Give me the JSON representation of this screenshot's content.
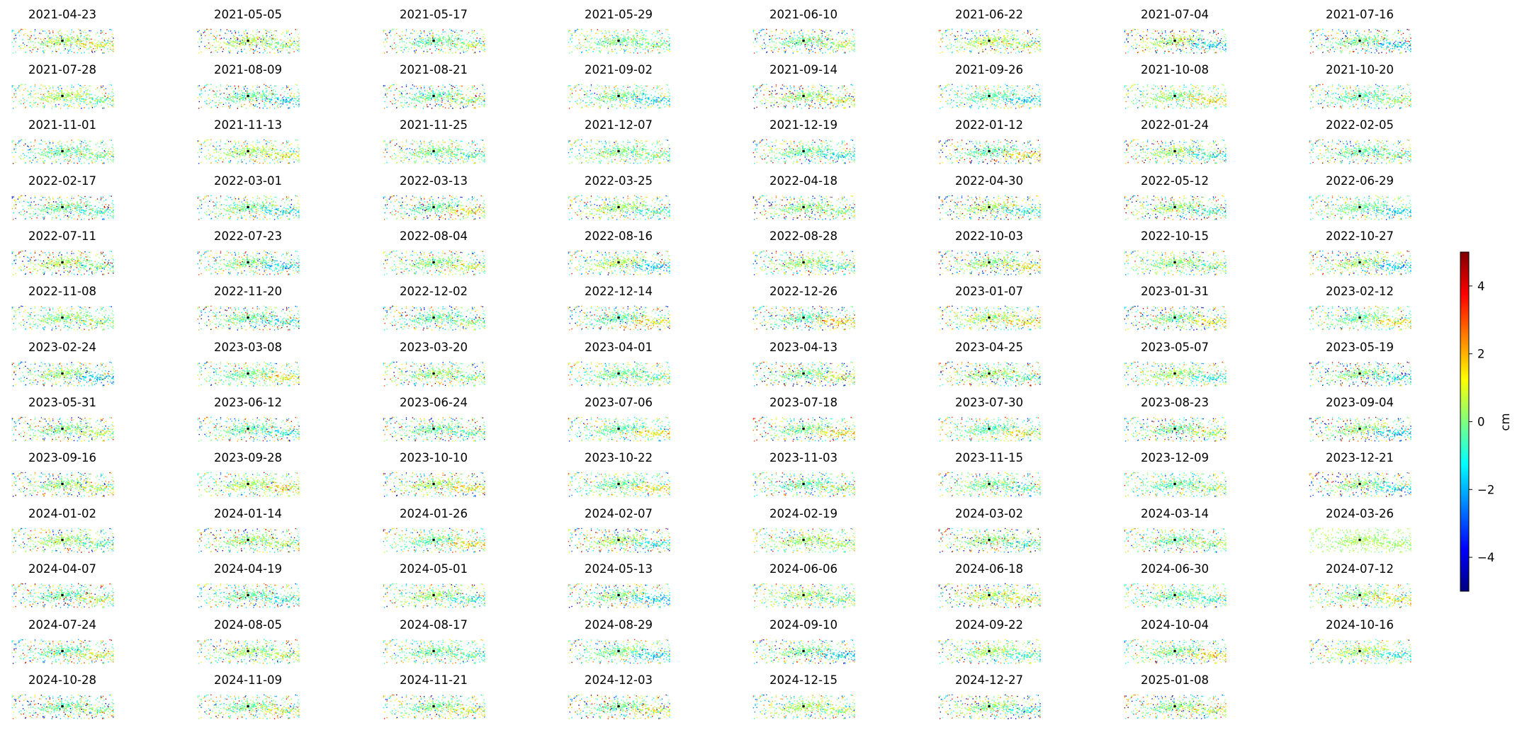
{
  "chart_data": {
    "type": "scatter",
    "description_of_layout": "small multiples",
    "panels": [
      "2021-04-23",
      "2021-05-05",
      "2021-05-17",
      "2021-05-29",
      "2021-06-10",
      "2021-06-22",
      "2021-07-04",
      "2021-07-16",
      "2021-07-28",
      "2021-08-09",
      "2021-08-21",
      "2021-09-02",
      "2021-09-14",
      "2021-09-26",
      "2021-10-08",
      "2021-10-20",
      "2021-11-01",
      "2021-11-13",
      "2021-11-25",
      "2021-12-07",
      "2021-12-19",
      "2022-01-12",
      "2022-01-24",
      "2022-02-05",
      "2022-02-17",
      "2022-03-01",
      "2022-03-13",
      "2022-03-25",
      "2022-04-18",
      "2022-04-30",
      "2022-05-12",
      "2022-06-29",
      "2022-07-11",
      "2022-07-23",
      "2022-08-04",
      "2022-08-16",
      "2022-08-28",
      "2022-10-03",
      "2022-10-15",
      "2022-10-27",
      "2022-11-08",
      "2022-11-20",
      "2022-12-02",
      "2022-12-14",
      "2022-12-26",
      "2023-01-07",
      "2023-01-31",
      "2023-02-12",
      "2023-02-24",
      "2023-03-08",
      "2023-03-20",
      "2023-04-01",
      "2023-04-13",
      "2023-04-25",
      "2023-05-07",
      "2023-05-19",
      "2023-05-31",
      "2023-06-12",
      "2023-06-24",
      "2023-07-06",
      "2023-07-18",
      "2023-07-30",
      "2023-08-23",
      "2023-09-04",
      "2023-09-16",
      "2023-09-28",
      "2023-10-10",
      "2023-10-22",
      "2023-11-03",
      "2023-11-15",
      "2023-12-09",
      "2023-12-21",
      "2024-01-02",
      "2024-01-14",
      "2024-01-26",
      "2024-02-07",
      "2024-02-19",
      "2024-03-02",
      "2024-03-14",
      "2024-03-26",
      "2024-04-07",
      "2024-04-19",
      "2024-05-01",
      "2024-05-13",
      "2024-06-06",
      "2024-06-18",
      "2024-06-30",
      "2024-07-12",
      "2024-07-24",
      "2024-08-05",
      "2024-08-17",
      "2024-08-29",
      "2024-09-10",
      "2024-09-22",
      "2024-10-04",
      "2024-10-16",
      "2024-10-28",
      "2024-11-09",
      "2024-11-21",
      "2024-12-03",
      "2024-12-15",
      "2024-12-27",
      "2025-01-08"
    ],
    "colorbar": {
      "label": "cm",
      "range": [
        -5,
        5
      ],
      "ticks": [
        "−4",
        "−2",
        "0",
        "2",
        "4"
      ],
      "tick_values": [
        -4,
        -2,
        0,
        2,
        4
      ],
      "colormap": "jet",
      "colormap_stops": [
        "#00007f",
        "#0000ff",
        "#007fff",
        "#00ffff",
        "#7fff7f",
        "#ffff00",
        "#ff7f00",
        "#ff0000",
        "#7f0000"
      ]
    },
    "reference_point_color": "#000000",
    "axes_visible": false
  }
}
